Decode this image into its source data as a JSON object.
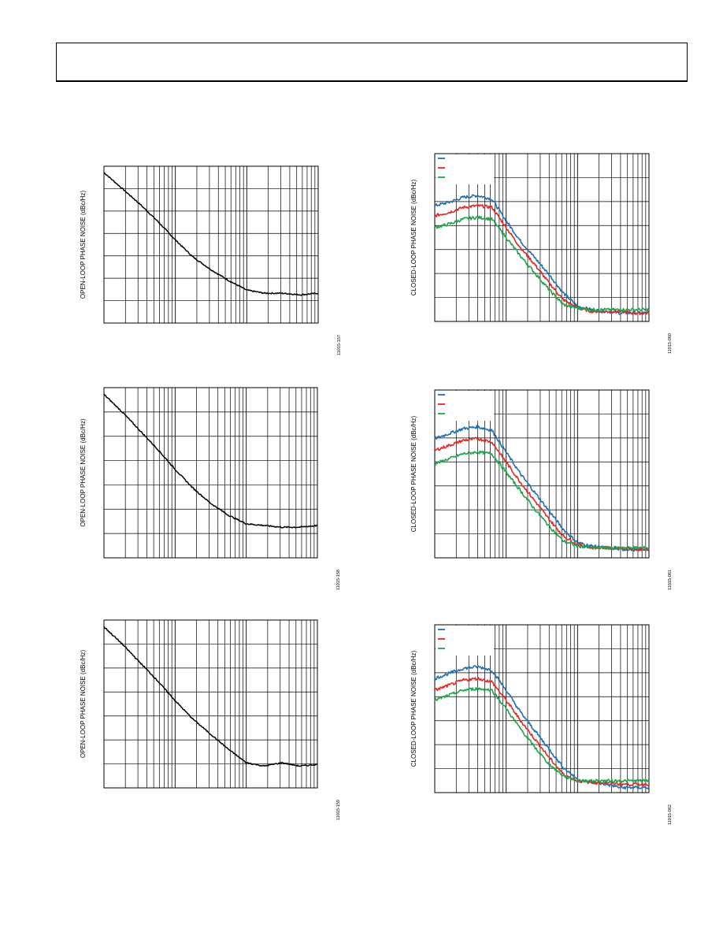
{
  "page": {
    "header_text": ""
  },
  "colors": {
    "axis": "#000000",
    "trace_black": "#000000",
    "trace_blue": "#1f6fb5",
    "trace_red": "#e8261f",
    "trace_green": "#1aa64a"
  },
  "chart_data": [
    {
      "type": "line",
      "ylabel": "OPEN-LOOP PHASE NOISE (dBc/Hz)",
      "figure_id": "11015-157",
      "x_scale": "log",
      "grid": true,
      "x_decades": 3,
      "series": [
        {
          "color": "trace_black",
          "x": [
            0,
            0.25,
            0.5,
            0.75,
            1.0,
            1.25,
            1.5,
            1.75,
            2.0,
            2.25,
            2.5,
            2.75,
            3.0
          ],
          "y": [
            0.96,
            0.86,
            0.76,
            0.65,
            0.53,
            0.42,
            0.34,
            0.27,
            0.21,
            0.19,
            0.19,
            0.18,
            0.19
          ]
        }
      ]
    },
    {
      "type": "line",
      "ylabel": "CLOSED-LOOP PHASE NOISE (dBc/Hz)",
      "figure_id": "11015-060",
      "x_scale": "log",
      "grid": true,
      "x_decades": 3,
      "legend": {
        "placement": "top-left",
        "entries": 3
      },
      "series": [
        {
          "color": "trace_blue",
          "x": [
            0,
            0.2,
            0.4,
            0.6,
            0.8,
            1.0,
            1.2,
            1.4,
            1.6,
            1.8,
            2.0,
            2.2,
            2.4,
            2.6,
            2.8,
            3.0
          ],
          "y": [
            0.69,
            0.71,
            0.74,
            0.75,
            0.73,
            0.6,
            0.48,
            0.38,
            0.28,
            0.17,
            0.09,
            0.07,
            0.06,
            0.05,
            0.05,
            0.05
          ]
        },
        {
          "color": "trace_red",
          "x": [
            0,
            0.2,
            0.4,
            0.6,
            0.8,
            1.0,
            1.2,
            1.4,
            1.6,
            1.8,
            2.0,
            2.2,
            2.4,
            2.6,
            2.8,
            3.0
          ],
          "y": [
            0.63,
            0.65,
            0.68,
            0.69,
            0.68,
            0.56,
            0.44,
            0.34,
            0.23,
            0.13,
            0.08,
            0.06,
            0.06,
            0.06,
            0.05,
            0.05
          ]
        },
        {
          "color": "trace_green",
          "x": [
            0,
            0.2,
            0.4,
            0.6,
            0.8,
            1.0,
            1.2,
            1.4,
            1.6,
            1.8,
            2.0,
            2.2,
            2.4,
            2.6,
            2.8,
            3.0
          ],
          "y": [
            0.56,
            0.58,
            0.61,
            0.62,
            0.61,
            0.5,
            0.39,
            0.29,
            0.19,
            0.1,
            0.08,
            0.07,
            0.07,
            0.07,
            0.07,
            0.07
          ]
        }
      ]
    },
    {
      "type": "line",
      "ylabel": "OPEN-LOOP PHASE NOISE (dBc/Hz)",
      "figure_id": "11015-158",
      "x_scale": "log",
      "grid": true,
      "x_decades": 3,
      "series": [
        {
          "color": "trace_black",
          "x": [
            0,
            0.25,
            0.5,
            0.75,
            1.0,
            1.25,
            1.5,
            1.75,
            2.0,
            2.25,
            2.5,
            2.75,
            3.0
          ],
          "y": [
            0.96,
            0.86,
            0.75,
            0.64,
            0.52,
            0.41,
            0.32,
            0.25,
            0.2,
            0.19,
            0.18,
            0.18,
            0.19
          ]
        }
      ]
    },
    {
      "type": "line",
      "ylabel": "CLOSED-LOOP PHASE NOISE (dBc/Hz)",
      "figure_id": "11015-061",
      "x_scale": "log",
      "grid": true,
      "x_decades": 3,
      "legend": {
        "placement": "top-left",
        "entries": 3
      },
      "series": [
        {
          "color": "trace_blue",
          "x": [
            0,
            0.2,
            0.4,
            0.6,
            0.8,
            1.0,
            1.2,
            1.4,
            1.6,
            1.8,
            2.0,
            2.2,
            2.4,
            2.6,
            2.8,
            3.0
          ],
          "y": [
            0.71,
            0.74,
            0.77,
            0.78,
            0.76,
            0.63,
            0.5,
            0.39,
            0.28,
            0.17,
            0.09,
            0.07,
            0.06,
            0.05,
            0.05,
            0.05
          ]
        },
        {
          "color": "trace_red",
          "x": [
            0,
            0.2,
            0.4,
            0.6,
            0.8,
            1.0,
            1.2,
            1.4,
            1.6,
            1.8,
            2.0,
            2.2,
            2.4,
            2.6,
            2.8,
            3.0
          ],
          "y": [
            0.64,
            0.67,
            0.7,
            0.71,
            0.69,
            0.57,
            0.45,
            0.34,
            0.23,
            0.13,
            0.08,
            0.06,
            0.06,
            0.06,
            0.05,
            0.05
          ]
        },
        {
          "color": "trace_green",
          "x": [
            0,
            0.2,
            0.4,
            0.6,
            0.8,
            1.0,
            1.2,
            1.4,
            1.6,
            1.8,
            2.0,
            2.2,
            2.4,
            2.6,
            2.8,
            3.0
          ],
          "y": [
            0.56,
            0.59,
            0.62,
            0.63,
            0.62,
            0.51,
            0.4,
            0.29,
            0.19,
            0.1,
            0.07,
            0.06,
            0.06,
            0.06,
            0.06,
            0.06
          ]
        }
      ]
    },
    {
      "type": "line",
      "ylabel": "OPEN-LOOP PHASE NOISE (dBc/Hz)",
      "figure_id": "11015-159",
      "x_scale": "log",
      "grid": true,
      "x_decades": 3,
      "series": [
        {
          "color": "trace_black",
          "x": [
            0,
            0.25,
            0.5,
            0.75,
            1.0,
            1.25,
            1.5,
            1.75,
            2.0,
            2.25,
            2.5,
            2.75,
            3.0
          ],
          "y": [
            0.96,
            0.86,
            0.75,
            0.64,
            0.52,
            0.41,
            0.32,
            0.23,
            0.15,
            0.13,
            0.15,
            0.13,
            0.14
          ]
        }
      ]
    },
    {
      "type": "line",
      "ylabel": "CLOSED-LOOP PHASE NOISE (dBc/Hz)",
      "figure_id": "11015-062",
      "x_scale": "log",
      "grid": true,
      "x_decades": 3,
      "legend": {
        "placement": "top-left",
        "entries": 3
      },
      "series": [
        {
          "color": "trace_blue",
          "x": [
            0,
            0.2,
            0.4,
            0.6,
            0.8,
            1.0,
            1.2,
            1.4,
            1.6,
            1.8,
            2.0,
            2.2,
            2.4,
            2.6,
            2.8,
            3.0
          ],
          "y": [
            0.68,
            0.71,
            0.74,
            0.75,
            0.73,
            0.61,
            0.48,
            0.37,
            0.26,
            0.15,
            0.08,
            0.06,
            0.05,
            0.03,
            0.03,
            0.03
          ]
        },
        {
          "color": "trace_red",
          "x": [
            0,
            0.2,
            0.4,
            0.6,
            0.8,
            1.0,
            1.2,
            1.4,
            1.6,
            1.8,
            2.0,
            2.2,
            2.4,
            2.6,
            2.8,
            3.0
          ],
          "y": [
            0.61,
            0.64,
            0.67,
            0.68,
            0.66,
            0.55,
            0.43,
            0.32,
            0.21,
            0.11,
            0.07,
            0.06,
            0.06,
            0.05,
            0.05,
            0.05
          ]
        },
        {
          "color": "trace_green",
          "x": [
            0,
            0.2,
            0.4,
            0.6,
            0.8,
            1.0,
            1.2,
            1.4,
            1.6,
            1.8,
            2.0,
            2.2,
            2.4,
            2.6,
            2.8,
            3.0
          ],
          "y": [
            0.55,
            0.58,
            0.61,
            0.62,
            0.61,
            0.5,
            0.38,
            0.27,
            0.17,
            0.1,
            0.07,
            0.07,
            0.07,
            0.07,
            0.07,
            0.07
          ]
        }
      ]
    }
  ]
}
